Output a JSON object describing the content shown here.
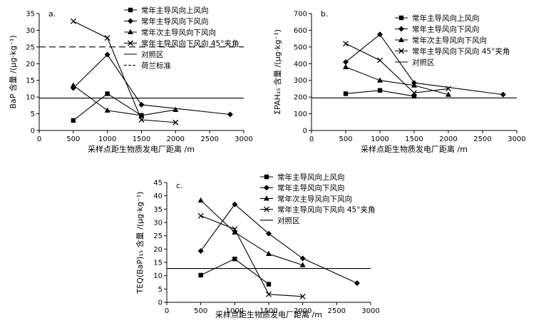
{
  "chart_data": [
    {
      "type": "line",
      "panel_label": "a.",
      "title": "",
      "xlabel": "采样点距生物质发电厂距离 /m",
      "ylabel": "BaP 含量 /(μg·kg⁻¹)",
      "xlim": [
        0,
        3000
      ],
      "ylim": [
        0,
        35
      ],
      "xticks": [
        0,
        500,
        1000,
        1500,
        2000,
        2500,
        3000
      ],
      "yticks": [
        0,
        5,
        10,
        15,
        20,
        25,
        30,
        35
      ],
      "series": [
        {
          "name": "常年主导风向上风向",
          "marker": "square",
          "x": [
            500,
            1000,
            1500
          ],
          "y": [
            3.0,
            11.0,
            4.5
          ]
        },
        {
          "name": "常年主导风向下风向",
          "marker": "diamond",
          "x": [
            500,
            1000,
            1500,
            2800
          ],
          "y": [
            12.7,
            22.7,
            7.7,
            4.8
          ]
        },
        {
          "name": "常年次主导风向下风向",
          "marker": "triangle",
          "x": [
            500,
            1000,
            1500,
            2000
          ],
          "y": [
            13.5,
            6.0,
            4.5,
            6.2
          ]
        },
        {
          "name": "常年主导风向下风向 45°夹角",
          "marker": "x",
          "x": [
            500,
            1000,
            1500,
            2000
          ],
          "y": [
            32.7,
            27.7,
            3.2,
            2.4
          ]
        }
      ],
      "hlines": [
        {
          "name": "对照区",
          "style": "solid",
          "y": 9.7
        },
        {
          "name": "荷兰标准",
          "style": "dashed",
          "y": 25
        }
      ]
    },
    {
      "type": "line",
      "panel_label": "b.",
      "title": "",
      "xlabel": "采样点距生物质发电厂距离 /m",
      "ylabel": "ΣPAH₁₅ 含量 /(μg·kg⁻¹)",
      "xlim": [
        0,
        3000
      ],
      "ylim": [
        0,
        700
      ],
      "xticks": [
        0,
        500,
        1000,
        1500,
        2000,
        2500,
        3000
      ],
      "yticks": [
        0,
        100,
        200,
        300,
        400,
        500,
        600,
        700
      ],
      "series": [
        {
          "name": "常年主导风向上风向",
          "marker": "square",
          "x": [
            500,
            1000,
            1500
          ],
          "y": [
            220,
            240,
            205
          ]
        },
        {
          "name": "常年主导风向下风向",
          "marker": "diamond",
          "x": [
            500,
            1000,
            1500,
            2800
          ],
          "y": [
            410,
            575,
            285,
            215
          ]
        },
        {
          "name": "常年次主导风向下风向",
          "marker": "triangle",
          "x": [
            500,
            1000,
            1500,
            2000
          ],
          "y": [
            380,
            300,
            270,
            215
          ]
        },
        {
          "name": "常年主导风向下风向 45°夹角",
          "marker": "x",
          "x": [
            500,
            1000,
            1500,
            2000
          ],
          "y": [
            520,
            420,
            225,
            250
          ]
        }
      ],
      "hlines": [
        {
          "name": "对照区",
          "style": "solid",
          "y": 195
        }
      ]
    },
    {
      "type": "line",
      "panel_label": "c.",
      "title": "",
      "xlabel": "采样点距生物质发电厂距离 /m",
      "ylabel": "TEQ(BaP)₁₅ 含量 /(μg·kg⁻¹)",
      "xlim": [
        0,
        3000
      ],
      "ylim": [
        0,
        45
      ],
      "xticks": [
        0,
        500,
        1000,
        1500,
        2000,
        2500,
        3000
      ],
      "yticks": [
        0,
        5,
        10,
        15,
        20,
        25,
        30,
        35,
        40,
        45
      ],
      "series": [
        {
          "name": "常年主导风向上风向",
          "marker": "square",
          "x": [
            500,
            1000,
            1500
          ],
          "y": [
            10.2,
            16.3,
            6.8
          ]
        },
        {
          "name": "常年主导风向下风向",
          "marker": "diamond",
          "x": [
            500,
            1000,
            1500,
            2000,
            2800
          ],
          "y": [
            19.3,
            36.8,
            25.8,
            16.5,
            7.2
          ]
        },
        {
          "name": "常年次主导风向下风向",
          "marker": "triangle",
          "x": [
            500,
            1000,
            1500,
            2000
          ],
          "y": [
            38.3,
            26.3,
            18.2,
            14.0
          ]
        },
        {
          "name": "常年主导风向下风向 45°夹角",
          "marker": "x",
          "x": [
            500,
            1000,
            1500,
            2000
          ],
          "y": [
            32.5,
            27.5,
            3.0,
            2.2
          ]
        }
      ],
      "hlines": [
        {
          "name": "对照区",
          "style": "solid",
          "y": 12.7
        }
      ]
    }
  ]
}
